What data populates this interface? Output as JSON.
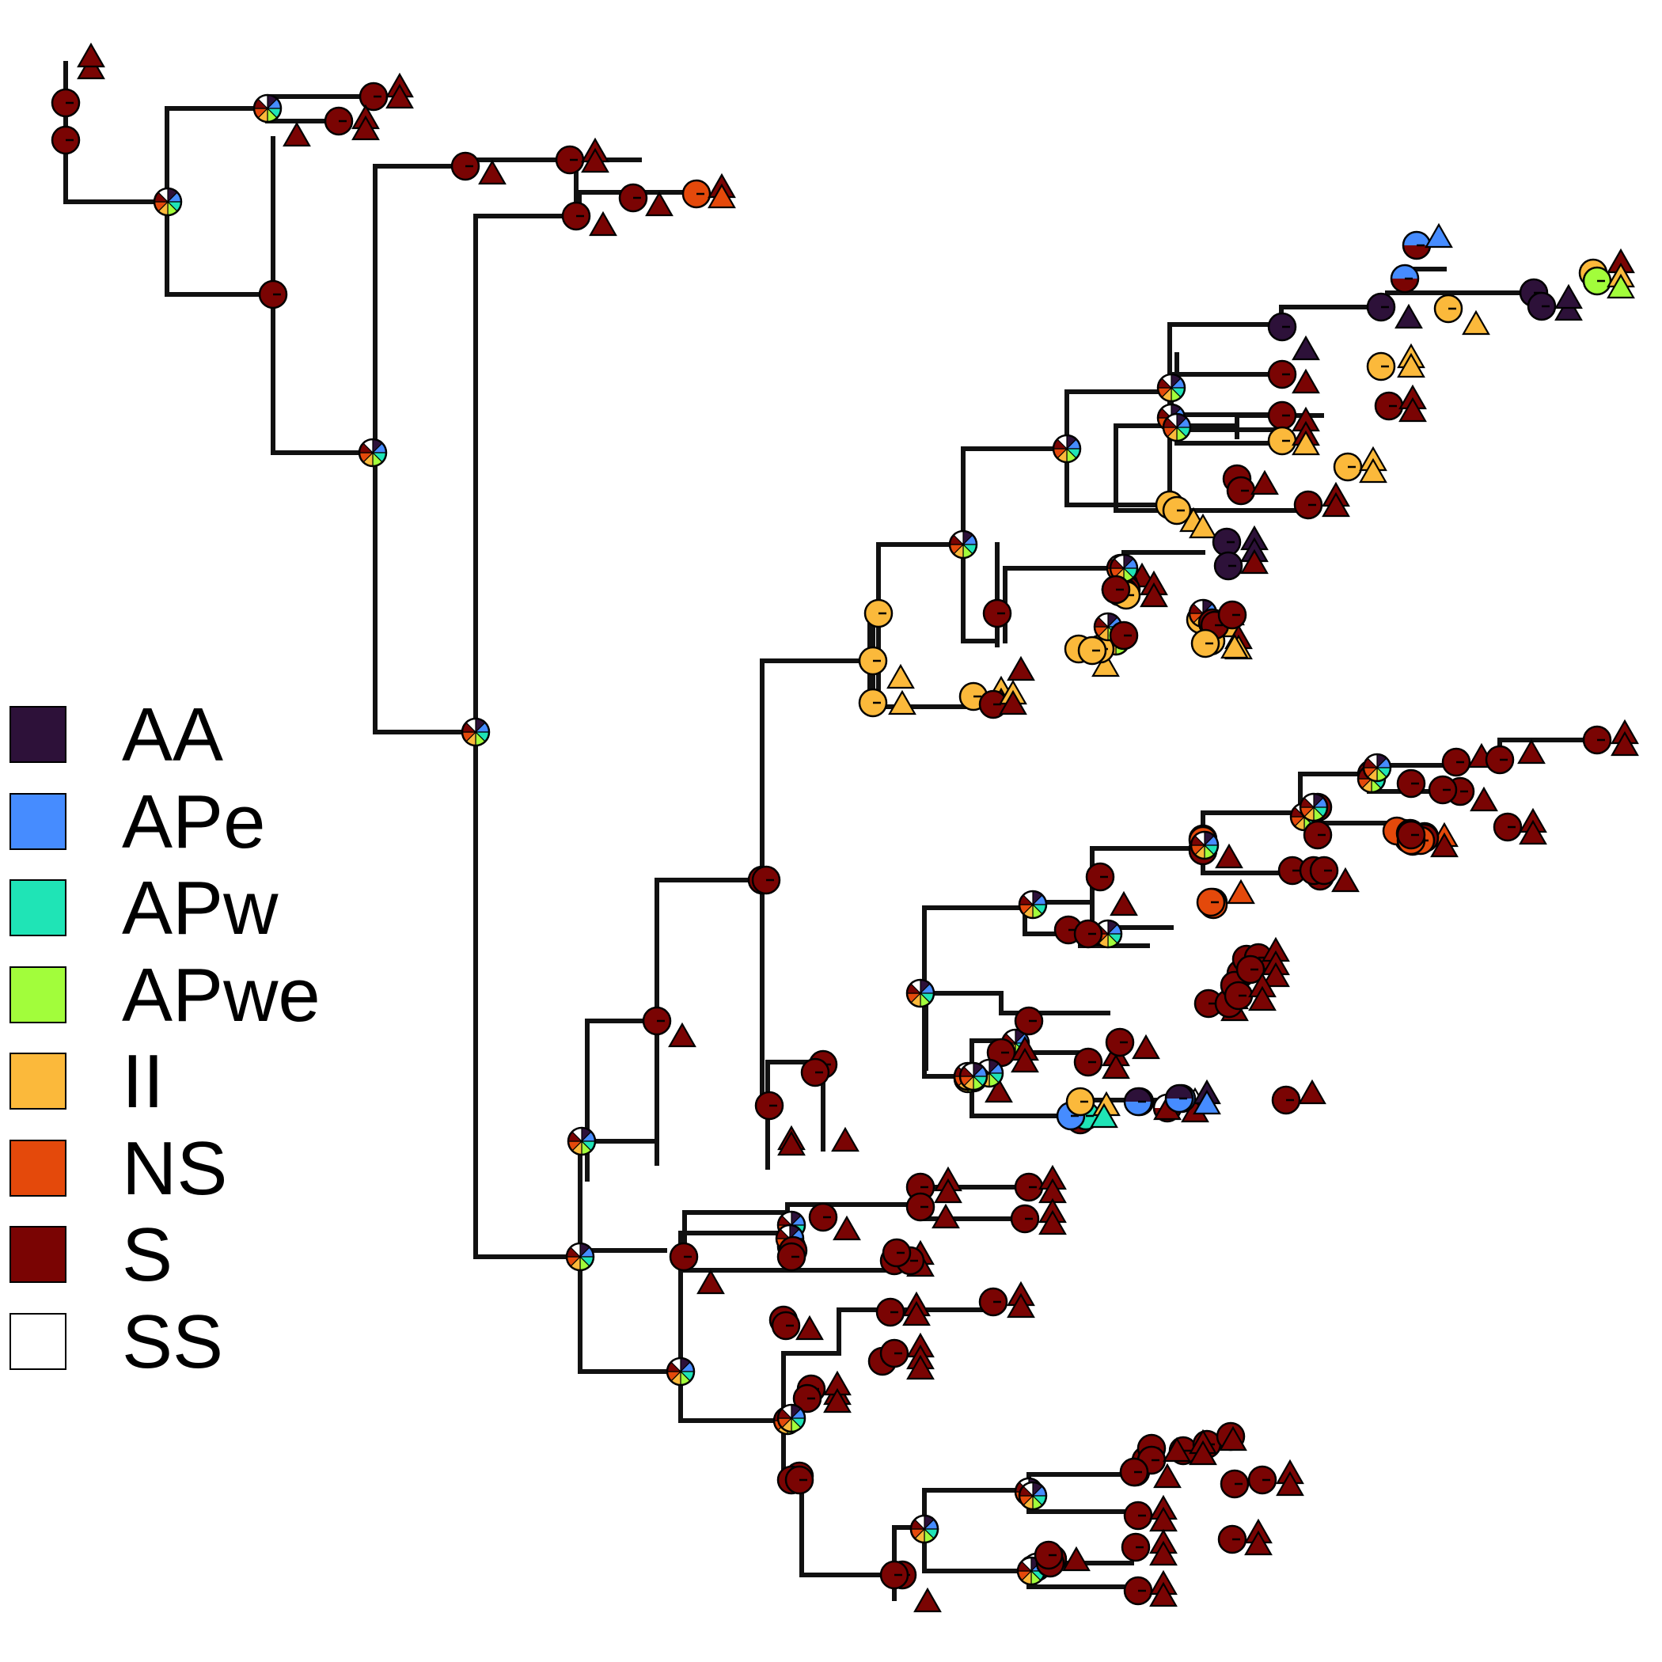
{
  "legend": {
    "items": [
      {
        "label": "AA",
        "color": "#2d1139"
      },
      {
        "label": "APe",
        "color": "#468cff"
      },
      {
        "label": "APw",
        "color": "#1fe4b6"
      },
      {
        "label": "APwe",
        "color": "#a2fd3b"
      },
      {
        "label": "II",
        "color": "#fbb93b"
      },
      {
        "label": "NS",
        "color": "#e4490b"
      },
      {
        "label": "S",
        "color": "#7a0403"
      },
      {
        "label": "SS",
        "color": "#ffffff"
      }
    ]
  },
  "state_colors": {
    "AA": "#2d1139",
    "APe": "#468cff",
    "APw": "#1fe4b6",
    "APwe": "#a2fd3b",
    "II": "#fbb93b",
    "NS": "#e4490b",
    "S": "#7a0403",
    "SS": "#ffffff"
  },
  "tree": {
    "node_marker": "circle",
    "tip_marker": "triangle"
  }
}
